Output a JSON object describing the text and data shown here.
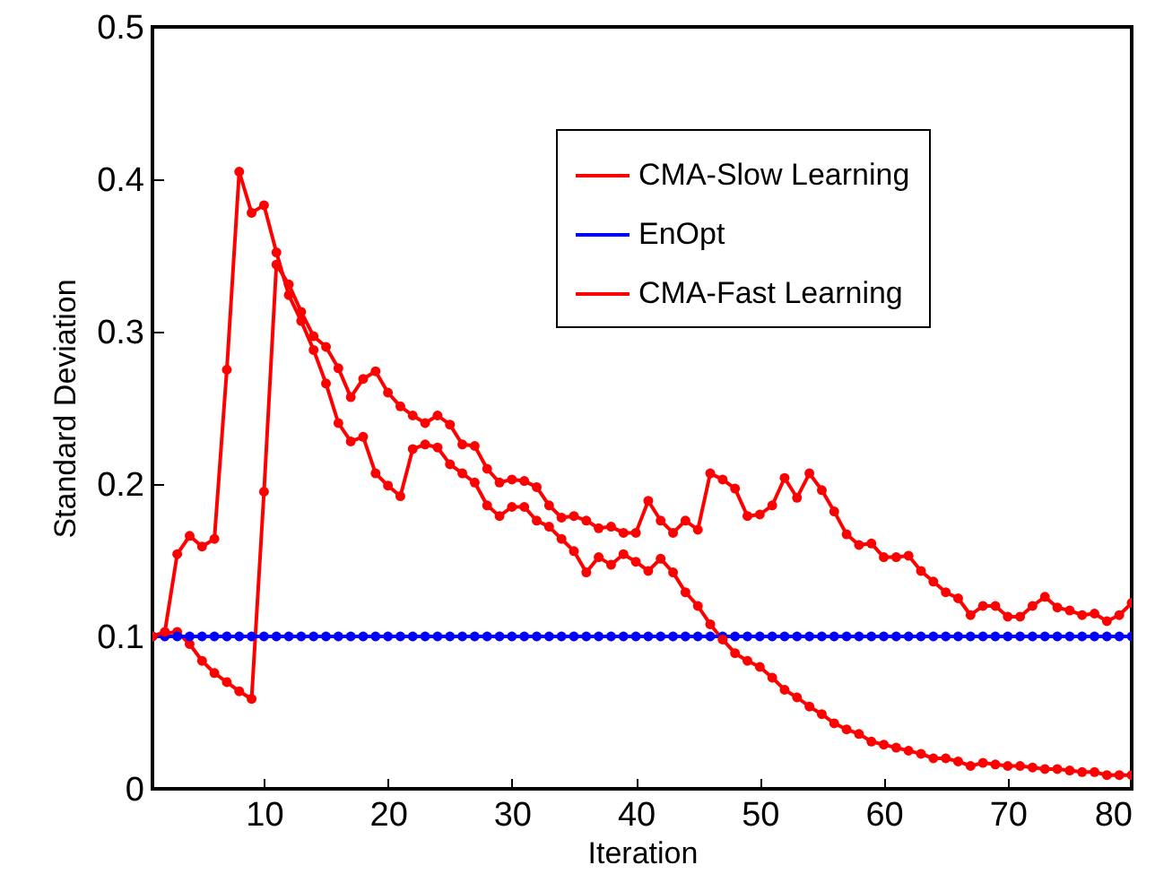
{
  "chart_data": {
    "type": "line",
    "xlabel": "Iteration",
    "ylabel": "Standard Deviation",
    "x": [
      1,
      2,
      3,
      4,
      5,
      6,
      7,
      8,
      9,
      10,
      11,
      12,
      13,
      14,
      15,
      16,
      17,
      18,
      19,
      20,
      21,
      22,
      23,
      24,
      25,
      26,
      27,
      28,
      29,
      30,
      31,
      32,
      33,
      34,
      35,
      36,
      37,
      38,
      39,
      40,
      41,
      42,
      43,
      44,
      45,
      46,
      47,
      48,
      49,
      50,
      51,
      52,
      53,
      54,
      55,
      56,
      57,
      58,
      59,
      60,
      61,
      62,
      63,
      64,
      65,
      66,
      67,
      68,
      69,
      70,
      71,
      72,
      73,
      74,
      75,
      76,
      77,
      78,
      79,
      80
    ],
    "series": [
      {
        "name": "CMA-Slow Learning",
        "color": "#ff0000",
        "values": [
          0.1,
          0.102,
          0.103,
          0.095,
          0.084,
          0.076,
          0.07,
          0.064,
          0.059,
          0.195,
          0.344,
          0.331,
          0.313,
          0.297,
          0.29,
          0.276,
          0.257,
          0.269,
          0.274,
          0.26,
          0.251,
          0.245,
          0.24,
          0.245,
          0.239,
          0.226,
          0.225,
          0.21,
          0.201,
          0.203,
          0.202,
          0.198,
          0.186,
          0.178,
          0.179,
          0.176,
          0.171,
          0.172,
          0.168,
          0.168,
          0.189,
          0.176,
          0.168,
          0.176,
          0.17,
          0.207,
          0.203,
          0.197,
          0.179,
          0.18,
          0.186,
          0.204,
          0.191,
          0.207,
          0.196,
          0.182,
          0.167,
          0.16,
          0.161,
          0.152,
          0.152,
          0.153,
          0.143,
          0.136,
          0.129,
          0.125,
          0.114,
          0.12,
          0.12,
          0.113,
          0.113,
          0.12,
          0.126,
          0.119,
          0.117,
          0.114,
          0.115,
          0.11,
          0.114,
          0.122
        ]
      },
      {
        "name": "EnOpt",
        "color": "#0000ff",
        "values": [
          0.1,
          0.1,
          0.1,
          0.1,
          0.1,
          0.1,
          0.1,
          0.1,
          0.1,
          0.1,
          0.1,
          0.1,
          0.1,
          0.1,
          0.1,
          0.1,
          0.1,
          0.1,
          0.1,
          0.1,
          0.1,
          0.1,
          0.1,
          0.1,
          0.1,
          0.1,
          0.1,
          0.1,
          0.1,
          0.1,
          0.1,
          0.1,
          0.1,
          0.1,
          0.1,
          0.1,
          0.1,
          0.1,
          0.1,
          0.1,
          0.1,
          0.1,
          0.1,
          0.1,
          0.1,
          0.1,
          0.1,
          0.1,
          0.1,
          0.1,
          0.1,
          0.1,
          0.1,
          0.1,
          0.1,
          0.1,
          0.1,
          0.1,
          0.1,
          0.1,
          0.1,
          0.1,
          0.1,
          0.1,
          0.1,
          0.1,
          0.1,
          0.1,
          0.1,
          0.1,
          0.1,
          0.1,
          0.1,
          0.1,
          0.1,
          0.1,
          0.1,
          0.1,
          0.1,
          0.1
        ]
      },
      {
        "name": "CMA-Fast Learning",
        "color": "#ff0000",
        "values": [
          0.1,
          0.103,
          0.154,
          0.166,
          0.159,
          0.164,
          0.275,
          0.405,
          0.378,
          0.383,
          0.352,
          0.324,
          0.307,
          0.288,
          0.266,
          0.24,
          0.228,
          0.231,
          0.207,
          0.199,
          0.192,
          0.223,
          0.226,
          0.224,
          0.213,
          0.207,
          0.201,
          0.186,
          0.179,
          0.185,
          0.185,
          0.176,
          0.172,
          0.164,
          0.156,
          0.142,
          0.152,
          0.147,
          0.154,
          0.149,
          0.143,
          0.151,
          0.142,
          0.129,
          0.12,
          0.108,
          0.098,
          0.089,
          0.084,
          0.08,
          0.073,
          0.065,
          0.06,
          0.054,
          0.049,
          0.043,
          0.039,
          0.036,
          0.031,
          0.029,
          0.027,
          0.025,
          0.023,
          0.02,
          0.02,
          0.018,
          0.015,
          0.017,
          0.016,
          0.015,
          0.015,
          0.014,
          0.013,
          0.013,
          0.012,
          0.011,
          0.011,
          0.009,
          0.009,
          0.009
        ]
      }
    ],
    "xlim": [
      1,
      80
    ],
    "xticks": [
      10,
      20,
      30,
      40,
      50,
      60,
      70,
      80
    ],
    "ylim": [
      0,
      0.5
    ],
    "yticks": [
      0,
      0.1,
      0.2,
      0.3,
      0.4,
      0.5
    ],
    "grid": false,
    "legend": "top right",
    "marker": "circle",
    "line_style": "solid"
  }
}
